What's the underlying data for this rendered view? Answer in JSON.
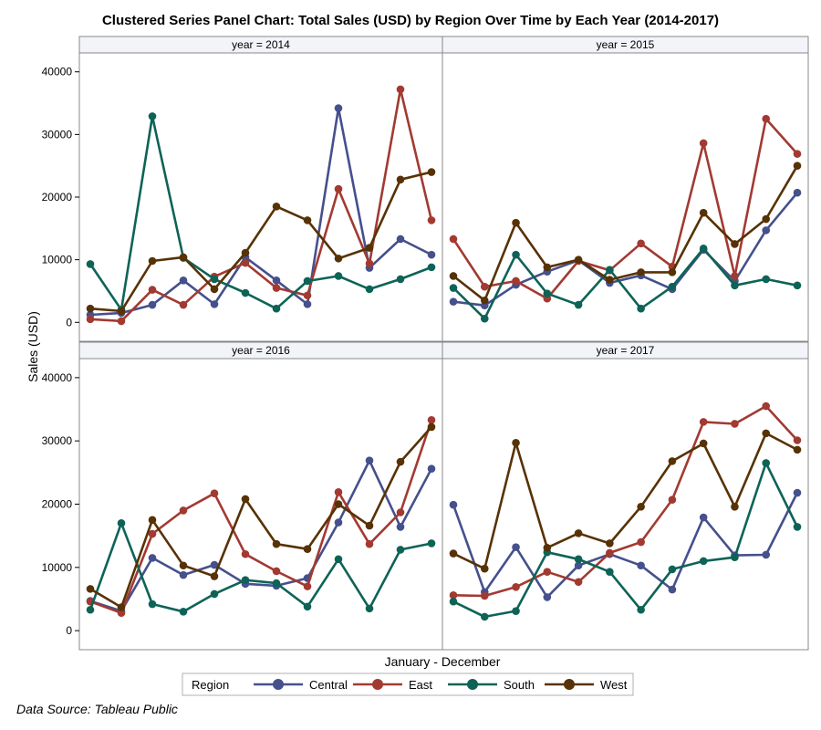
{
  "chart_data": {
    "type": "line",
    "title": "Clustered Series Panel Chart: Total Sales (USD) by Region Over Time by Each Year (2014-2017)",
    "xlabel": "January - December",
    "ylabel": "Sales (USD)",
    "ylim": [
      -2000,
      42000
    ],
    "y_ticks": [
      0,
      10000,
      20000,
      30000,
      40000
    ],
    "months": [
      1,
      2,
      3,
      4,
      5,
      6,
      7,
      8,
      9,
      10,
      11,
      12
    ],
    "legend_title": "Region",
    "legend_position": "bottom",
    "source": "Data Source: Tableau Public",
    "colors": {
      "Central": "#45508c",
      "East": "#a23a32",
      "South": "#0e6357",
      "West": "#573205",
      "strip_bg": "#f2f4fa",
      "frame": "#888888"
    },
    "panels": [
      {
        "label": "year = 2014",
        "series": [
          {
            "name": "Central",
            "values": [
              1200,
              1500,
              2800,
              6700,
              2900,
              10400,
              6700,
              2900,
              34200,
              8700,
              13300,
              10800
            ]
          },
          {
            "name": "East",
            "values": [
              500,
              200,
              5200,
              2800,
              7300,
              9500,
              5500,
              4300,
              21300,
              9400,
              37200,
              16300
            ]
          },
          {
            "name": "South",
            "values": [
              9300,
              2000,
              32900,
              10300,
              6900,
              4700,
              2200,
              6600,
              7400,
              5300,
              6900,
              8800
            ]
          },
          {
            "name": "West",
            "values": [
              2200,
              1800,
              9800,
              10400,
              5300,
              11100,
              18500,
              16300,
              10200,
              11900,
              22800,
              24000
            ]
          }
        ]
      },
      {
        "label": "year = 2015",
        "series": [
          {
            "name": "Central",
            "values": [
              3300,
              2700,
              6000,
              8100,
              9900,
              6300,
              7500,
              5300,
              11600,
              6600,
              14700,
              20700
            ]
          },
          {
            "name": "East",
            "values": [
              13300,
              5700,
              6600,
              3800,
              9800,
              8300,
              12600,
              8900,
              28600,
              7400,
              32500,
              26900
            ]
          },
          {
            "name": "South",
            "values": [
              5500,
              600,
              10800,
              4600,
              2800,
              8400,
              2200,
              5700,
              11800,
              5900,
              6900,
              5900
            ]
          },
          {
            "name": "West",
            "values": [
              7400,
              3500,
              15900,
              8800,
              10000,
              6800,
              8000,
              8000,
              17500,
              12500,
              16500,
              25000
            ]
          }
        ]
      },
      {
        "label": "year = 2016",
        "series": [
          {
            "name": "Central",
            "values": [
              4700,
              3100,
              11500,
              8800,
              10400,
              7400,
              7100,
              8300,
              17100,
              26900,
              16400,
              25600
            ]
          },
          {
            "name": "East",
            "values": [
              4600,
              2800,
              15300,
              19000,
              21700,
              12100,
              9400,
              7000,
              21900,
              13700,
              18700,
              33300
            ]
          },
          {
            "name": "South",
            "values": [
              3300,
              17000,
              4200,
              3000,
              5800,
              8000,
              7500,
              3800,
              11300,
              3500,
              12800,
              13800
            ]
          },
          {
            "name": "West",
            "values": [
              6600,
              3700,
              17500,
              10300,
              8600,
              20800,
              13700,
              12900,
              20000,
              16600,
              26700,
              32200
            ]
          }
        ]
      },
      {
        "label": "year = 2017",
        "series": [
          {
            "name": "Central",
            "values": [
              19900,
              6100,
              13200,
              5300,
              10300,
              12100,
              10300,
              6500,
              17900,
              11900,
              12000,
              21800
            ]
          },
          {
            "name": "East",
            "values": [
              5600,
              5500,
              6900,
              9300,
              7700,
              12300,
              14000,
              20700,
              33000,
              32700,
              35500,
              30100
            ]
          },
          {
            "name": "South",
            "values": [
              4600,
              2200,
              3100,
              12400,
              11300,
              9300,
              3300,
              9700,
              11000,
              11600,
              26500,
              16400
            ]
          },
          {
            "name": "West",
            "values": [
              12200,
              9800,
              29700,
              13100,
              15400,
              13800,
              19600,
              26800,
              29600,
              19600,
              31200,
              28600
            ]
          }
        ]
      }
    ]
  }
}
